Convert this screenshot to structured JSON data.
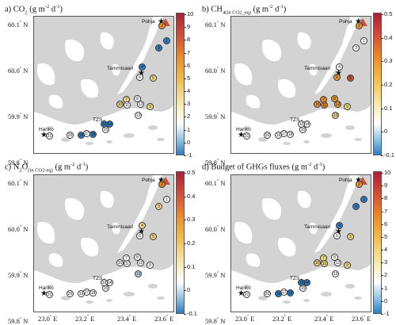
{
  "panels": [
    {
      "letter": "a)",
      "gas": "CO",
      "gas_sub": "2",
      "qualifier": "",
      "unit": " (g m",
      "unit_exp": "-2",
      "unit_tail": " d",
      "unit_exp2": "-1",
      "unit_close": ")",
      "cbar": {
        "ticks": [
          "10",
          "9",
          "8",
          "7",
          "6",
          "5",
          "4",
          "3",
          "2",
          "1",
          "0",
          "-1"
        ]
      },
      "sites": [
        {
          "id": "1",
          "color": "#2f7dc2"
        },
        {
          "id": "2",
          "color": "#ea9a3a"
        },
        {
          "id": "3",
          "color": "#2f7dc2"
        },
        {
          "id": "4",
          "color": "#2f7dc2"
        },
        {
          "id": "5",
          "color": "#f3dc86"
        },
        {
          "id": "6",
          "color": "#ffffff"
        },
        {
          "id": "7",
          "color": "#f3dc86"
        },
        {
          "id": "8",
          "color": "#ffffff"
        },
        {
          "id": "9",
          "color": "#f3dc86"
        },
        {
          "id": "10",
          "color": "#f3dc86"
        },
        {
          "id": "11",
          "color": "#ffffff"
        },
        {
          "id": "12",
          "color": "#ffffff"
        },
        {
          "id": "13",
          "color": "#ffffff"
        },
        {
          "id": "14",
          "color": "#2f7dc2"
        },
        {
          "id": "15",
          "color": "#ffffff"
        },
        {
          "id": "16",
          "color": "#2f7dc2"
        },
        {
          "id": "17",
          "color": "#ffffff"
        },
        {
          "id": "18",
          "color": "#2f7dc2"
        },
        {
          "id": "19",
          "color": "#2f7dc2"
        },
        {
          "id": "20",
          "color": "#ffffff"
        },
        {
          "id": "21",
          "color": "#ffffff"
        }
      ]
    },
    {
      "letter": "b)",
      "gas": "CH",
      "gas_sub": "4",
      "qualifier": "(in CO2_eq)",
      "unit": " (g m",
      "unit_exp": "-2",
      "unit_tail": " d",
      "unit_exp2": "-1",
      "unit_close": ")",
      "cbar": {
        "ticks": [
          "0.5",
          "0.4",
          "0.3",
          "0.2",
          "0.1",
          "0",
          "-0.1"
        ]
      },
      "sites": [
        {
          "id": "1",
          "color": "#ffffff"
        },
        {
          "id": "2",
          "color": "#ea9a3a"
        },
        {
          "id": "3",
          "color": "#ffffff"
        },
        {
          "id": "4",
          "color": "#ffffff"
        },
        {
          "id": "5",
          "color": "#c8523a"
        },
        {
          "id": "6",
          "color": "#ea9a3a"
        },
        {
          "id": "7",
          "color": "#e8882e"
        },
        {
          "id": "8",
          "color": "#ea9a3a"
        },
        {
          "id": "9",
          "color": "#f3dc86"
        },
        {
          "id": "10",
          "color": "#ea9a3a"
        },
        {
          "id": "11",
          "color": "#e8882e"
        },
        {
          "id": "12",
          "color": "#ea9a3a"
        },
        {
          "id": "13",
          "color": "#f3dc86"
        },
        {
          "id": "14",
          "color": "#ffffff"
        },
        {
          "id": "15",
          "color": "#ffffff"
        },
        {
          "id": "16",
          "color": "#ffffff"
        },
        {
          "id": "17",
          "color": "#ffffff"
        },
        {
          "id": "18",
          "color": "#ffffff"
        },
        {
          "id": "19",
          "color": "#ffffff"
        },
        {
          "id": "20",
          "color": "#ffffff"
        },
        {
          "id": "21",
          "color": "#ffffff"
        }
      ]
    },
    {
      "letter": "c)",
      "gas": "N",
      "gas_sub": "2",
      "gas_tail": "O",
      "qualifier": "(in CO2-eq)",
      "unit": " (g m",
      "unit_exp": "-2",
      "unit_tail": " d",
      "unit_exp2": "-1",
      "unit_close": ")",
      "cbar": {
        "ticks": [
          "0.5",
          "0.4",
          "0.3",
          "0.2",
          "0.1",
          "0",
          "-0.1"
        ]
      },
      "sites": [
        {
          "id": "1",
          "color": "#ffffff"
        },
        {
          "id": "2",
          "color": "#e8882e"
        },
        {
          "id": "3",
          "color": "#f3dc86"
        },
        {
          "id": "4",
          "color": "#f3dc86"
        },
        {
          "id": "5",
          "color": "#f3dc86"
        },
        {
          "id": "6",
          "color": "#ffffff"
        },
        {
          "id": "7",
          "color": "#ffffff"
        },
        {
          "id": "8",
          "color": "#ffffff"
        },
        {
          "id": "9",
          "color": "#ffffff"
        },
        {
          "id": "10",
          "color": "#ffffff"
        },
        {
          "id": "11",
          "color": "#ffffff"
        },
        {
          "id": "12",
          "color": "#ffffff"
        },
        {
          "id": "13",
          "color": "#bcd7ea"
        },
        {
          "id": "14",
          "color": "#ffffff"
        },
        {
          "id": "15",
          "color": "#ffffff"
        },
        {
          "id": "16",
          "color": "#ffffff"
        },
        {
          "id": "17",
          "color": "#ffffff"
        },
        {
          "id": "18",
          "color": "#ffffff"
        },
        {
          "id": "19",
          "color": "#ffffff"
        },
        {
          "id": "20",
          "color": "#ffffff"
        },
        {
          "id": "21",
          "color": "#ffffff"
        }
      ]
    },
    {
      "letter": "d)",
      "gas": "Budget of GHGs fluxes",
      "gas_sub": "",
      "qualifier": "",
      "unit": " (g m",
      "unit_exp": "-2",
      "unit_tail": " d",
      "unit_exp2": "-1",
      "unit_close": ")",
      "cbar": {
        "ticks": [
          "10",
          "9",
          "8",
          "7",
          "6",
          "5",
          "4",
          "3",
          "2",
          "1",
          "0",
          "-1"
        ]
      },
      "sites": [
        {
          "id": "1",
          "color": "#2f7dc2"
        },
        {
          "id": "2",
          "color": "#ea9a3a"
        },
        {
          "id": "3",
          "color": "#2f7dc2"
        },
        {
          "id": "4",
          "color": "#2f7dc2"
        },
        {
          "id": "5",
          "color": "#f3dc86"
        },
        {
          "id": "6",
          "color": "#ffffff"
        },
        {
          "id": "7",
          "color": "#f3dc86"
        },
        {
          "id": "8",
          "color": "#ffffff"
        },
        {
          "id": "9",
          "color": "#f3dc86"
        },
        {
          "id": "10",
          "color": "#f3dc86"
        },
        {
          "id": "11",
          "color": "#f3dc86"
        },
        {
          "id": "12",
          "color": "#ffffff"
        },
        {
          "id": "13",
          "color": "#ffffff"
        },
        {
          "id": "14",
          "color": "#2f7dc2"
        },
        {
          "id": "15",
          "color": "#ffffff"
        },
        {
          "id": "16",
          "color": "#2f7dc2"
        },
        {
          "id": "17",
          "color": "#ffffff"
        },
        {
          "id": "18",
          "color": "#2f7dc2"
        },
        {
          "id": "19",
          "color": "#2f7dc2"
        },
        {
          "id": "20",
          "color": "#ffffff"
        },
        {
          "id": "21",
          "color": "#ffffff"
        }
      ]
    }
  ],
  "towns": {
    "pohja": "Pohja",
    "tammisaari": "Tammisaari",
    "tzs": "TZS",
    "hanko": "Hanko"
  },
  "lat_labels": [
    "60.1",
    "60.0",
    "59.9",
    "59.8"
  ],
  "lat_suffix": " N",
  "lon_labels": [
    "23.0",
    "23.2",
    "23.4",
    "23.6"
  ],
  "lon_suffix": " E",
  "degree": "°"
}
